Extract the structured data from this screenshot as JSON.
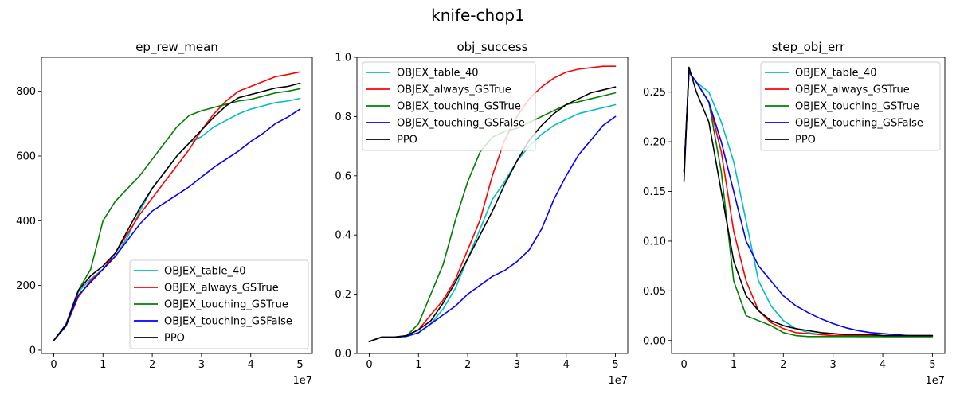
{
  "figure": {
    "title": "knife-chop1"
  },
  "legend_labels": [
    "OBJEX_table_40",
    "OBJEX_always_GSTrue",
    "OBJEX_touching_GSTrue",
    "OBJEX_touching_GSFalse",
    "PPO"
  ],
  "colors": {
    "OBJEX_table_40": "#00bfbf",
    "OBJEX_always_GSTrue": "#ff0000",
    "OBJEX_touching_GSTrue": "#008000",
    "OBJEX_touching_GSFalse": "#0000ff",
    "PPO": "#000000"
  },
  "chart_data": [
    {
      "type": "line",
      "title": "ep_rew_mean",
      "xlabel": "",
      "ylabel": "",
      "x_offset_label": "1e7",
      "xlim": [
        -0.25,
        5.25
      ],
      "ylim": [
        -10,
        905
      ],
      "xticks": [
        0,
        1,
        2,
        3,
        4,
        5
      ],
      "xtick_labels": [
        "0",
        "1",
        "2",
        "3",
        "4",
        "5"
      ],
      "yticks": [
        0,
        200,
        400,
        600,
        800
      ],
      "ytick_labels": [
        "0",
        "200",
        "400",
        "600",
        "800"
      ],
      "grid": false,
      "legend_position": "lower right",
      "x": [
        0,
        0.25,
        0.5,
        0.75,
        1.0,
        1.25,
        1.5,
        1.75,
        2.0,
        2.25,
        2.5,
        2.75,
        3.0,
        3.25,
        3.5,
        3.75,
        4.0,
        4.25,
        4.5,
        4.75,
        5.0
      ],
      "series": [
        {
          "name": "OBJEX_table_40",
          "values": [
            30,
            80,
            180,
            220,
            250,
            290,
            350,
            430,
            500,
            550,
            600,
            640,
            660,
            690,
            710,
            730,
            745,
            755,
            765,
            770,
            778
          ]
        },
        {
          "name": "OBJEX_always_GSTrue",
          "values": [
            30,
            75,
            165,
            215,
            250,
            300,
            360,
            420,
            470,
            520,
            570,
            620,
            680,
            730,
            770,
            800,
            815,
            830,
            845,
            852,
            860
          ]
        },
        {
          "name": "OBJEX_touching_GSTrue",
          "values": [
            30,
            75,
            185,
            250,
            400,
            460,
            500,
            540,
            590,
            640,
            690,
            725,
            740,
            750,
            760,
            770,
            775,
            785,
            795,
            800,
            808
          ]
        },
        {
          "name": "OBJEX_touching_GSFalse",
          "values": [
            30,
            75,
            170,
            210,
            250,
            290,
            340,
            390,
            430,
            455,
            480,
            505,
            535,
            565,
            590,
            615,
            645,
            670,
            700,
            720,
            745
          ]
        },
        {
          "name": "PPO",
          "values": [
            30,
            80,
            185,
            230,
            260,
            300,
            370,
            440,
            500,
            550,
            600,
            640,
            680,
            720,
            755,
            780,
            790,
            800,
            810,
            815,
            825
          ]
        }
      ]
    },
    {
      "type": "line",
      "title": "obj_success",
      "xlabel": "",
      "ylabel": "",
      "x_offset_label": "1e7",
      "xlim": [
        -0.25,
        5.25
      ],
      "ylim": [
        0,
        1.0
      ],
      "xticks": [
        0,
        1,
        2,
        3,
        4,
        5
      ],
      "xtick_labels": [
        "0",
        "1",
        "2",
        "3",
        "4",
        "5"
      ],
      "yticks": [
        0,
        0.2,
        0.4,
        0.6,
        0.8,
        1.0
      ],
      "ytick_labels": [
        "0.0",
        "0.2",
        "0.4",
        "0.6",
        "0.8",
        "1.0"
      ],
      "grid": false,
      "legend_position": "upper left",
      "x": [
        0,
        0.25,
        0.5,
        0.75,
        1.0,
        1.25,
        1.5,
        1.75,
        2.0,
        2.25,
        2.5,
        2.75,
        3.0,
        3.25,
        3.5,
        3.75,
        4.0,
        4.25,
        4.5,
        4.75,
        5.0
      ],
      "series": [
        {
          "name": "OBJEX_table_40",
          "values": [
            0.04,
            0.055,
            0.055,
            0.057,
            0.07,
            0.1,
            0.15,
            0.22,
            0.32,
            0.42,
            0.52,
            0.58,
            0.65,
            0.7,
            0.74,
            0.77,
            0.79,
            0.81,
            0.82,
            0.83,
            0.84
          ]
        },
        {
          "name": "OBJEX_always_GSTrue",
          "values": [
            0.04,
            0.055,
            0.055,
            0.06,
            0.08,
            0.13,
            0.18,
            0.25,
            0.35,
            0.45,
            0.6,
            0.72,
            0.8,
            0.86,
            0.9,
            0.93,
            0.95,
            0.96,
            0.965,
            0.97,
            0.97
          ]
        },
        {
          "name": "OBJEX_touching_GSTrue",
          "values": [
            0.04,
            0.055,
            0.055,
            0.058,
            0.1,
            0.2,
            0.3,
            0.45,
            0.58,
            0.68,
            0.73,
            0.75,
            0.76,
            0.78,
            0.8,
            0.82,
            0.84,
            0.85,
            0.86,
            0.87,
            0.88
          ]
        },
        {
          "name": "OBJEX_touching_GSFalse",
          "values": [
            0.04,
            0.055,
            0.055,
            0.058,
            0.07,
            0.1,
            0.13,
            0.16,
            0.2,
            0.23,
            0.26,
            0.28,
            0.31,
            0.35,
            0.42,
            0.52,
            0.6,
            0.67,
            0.72,
            0.77,
            0.8
          ]
        },
        {
          "name": "PPO",
          "values": [
            0.04,
            0.055,
            0.055,
            0.06,
            0.08,
            0.11,
            0.17,
            0.24,
            0.32,
            0.4,
            0.48,
            0.57,
            0.65,
            0.72,
            0.77,
            0.81,
            0.84,
            0.86,
            0.88,
            0.89,
            0.9
          ]
        }
      ]
    },
    {
      "type": "line",
      "title": "step_obj_err",
      "xlabel": "",
      "ylabel": "",
      "x_offset_label": "1e7",
      "xlim": [
        -0.25,
        5.25
      ],
      "ylim": [
        -0.013,
        0.285
      ],
      "xticks": [
        0,
        1,
        2,
        3,
        4,
        5
      ],
      "xtick_labels": [
        "0",
        "1",
        "2",
        "3",
        "4",
        "5"
      ],
      "yticks": [
        0,
        0.05,
        0.1,
        0.15,
        0.2,
        0.25
      ],
      "ytick_labels": [
        "0.00",
        "0.05",
        "0.10",
        "0.15",
        "0.20",
        "0.25"
      ],
      "grid": false,
      "legend_position": "upper right",
      "x": [
        0,
        0.1,
        0.25,
        0.5,
        0.75,
        1.0,
        1.25,
        1.5,
        1.75,
        2.0,
        2.25,
        2.5,
        2.75,
        3.0,
        3.25,
        3.5,
        3.75,
        4.0,
        4.25,
        4.5,
        4.75,
        5.0
      ],
      "series": [
        {
          "name": "OBJEX_table_40",
          "values": [
            0.17,
            0.27,
            0.26,
            0.25,
            0.22,
            0.18,
            0.12,
            0.06,
            0.035,
            0.02,
            0.012,
            0.008,
            0.006,
            0.005,
            0.005,
            0.004,
            0.004,
            0.004,
            0.004,
            0.004,
            0.004,
            0.004
          ]
        },
        {
          "name": "OBJEX_always_GSTrue",
          "values": [
            0.17,
            0.27,
            0.26,
            0.24,
            0.19,
            0.11,
            0.06,
            0.03,
            0.018,
            0.012,
            0.008,
            0.007,
            0.006,
            0.005,
            0.005,
            0.005,
            0.005,
            0.004,
            0.004,
            0.004,
            0.004,
            0.004
          ]
        },
        {
          "name": "OBJEX_touching_GSTrue",
          "values": [
            0.17,
            0.27,
            0.26,
            0.24,
            0.17,
            0.06,
            0.025,
            0.02,
            0.015,
            0.008,
            0.005,
            0.004,
            0.004,
            0.004,
            0.004,
            0.004,
            0.004,
            0.004,
            0.004,
            0.004,
            0.004,
            0.004
          ]
        },
        {
          "name": "OBJEX_touching_GSFalse",
          "values": [
            0.17,
            0.27,
            0.26,
            0.24,
            0.2,
            0.15,
            0.1,
            0.075,
            0.06,
            0.045,
            0.035,
            0.028,
            0.022,
            0.017,
            0.013,
            0.01,
            0.008,
            0.007,
            0.006,
            0.005,
            0.005,
            0.005
          ]
        },
        {
          "name": "PPO",
          "values": [
            0.16,
            0.275,
            0.25,
            0.22,
            0.15,
            0.08,
            0.045,
            0.03,
            0.02,
            0.015,
            0.012,
            0.01,
            0.008,
            0.007,
            0.006,
            0.006,
            0.006,
            0.005,
            0.005,
            0.005,
            0.005,
            0.005
          ]
        }
      ]
    }
  ]
}
